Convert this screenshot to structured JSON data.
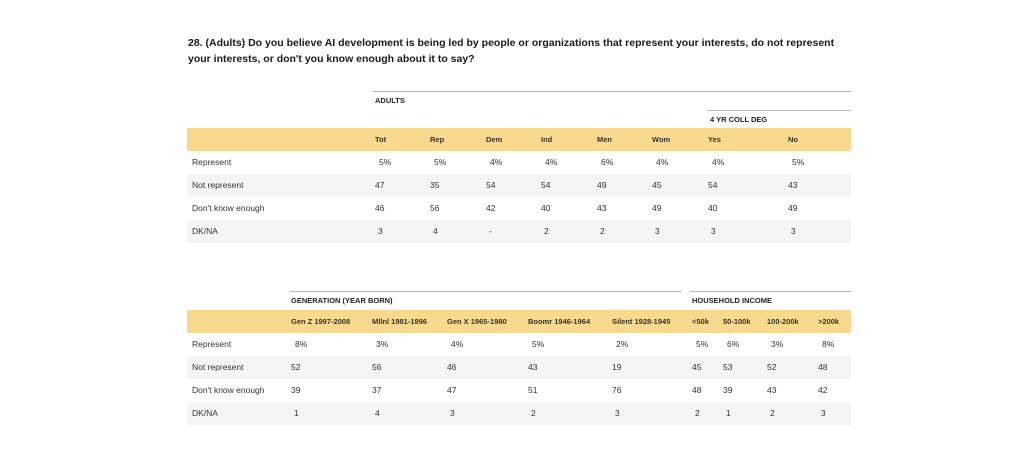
{
  "question": "28. (Adults) Do you believe AI development is being led by people or organizations that represent your interests, do not represent your interests, or don't you know enough about it to say?",
  "table1": {
    "group_adults": "ADULTS",
    "group_college": "4 YR COLL DEG",
    "columns": [
      "Tot",
      "Rep",
      "Dem",
      "Ind",
      "Men",
      "Wom",
      "Yes",
      "No"
    ],
    "rows": [
      {
        "label": "Represent",
        "values": [
          "5%",
          "5%",
          "4%",
          "4%",
          "6%",
          "4%",
          "4%",
          "5%"
        ]
      },
      {
        "label": "Not represent",
        "values": [
          "47",
          "35",
          "54",
          "54",
          "49",
          "45",
          "54",
          "43"
        ]
      },
      {
        "label": "Don't know enough",
        "values": [
          "46",
          "56",
          "42",
          "40",
          "43",
          "49",
          "40",
          "49"
        ]
      },
      {
        "label": "DK/NA",
        "values": [
          "3",
          "4",
          "-",
          "2",
          "2",
          "3",
          "3",
          "3"
        ]
      }
    ]
  },
  "table2": {
    "group_generation": "GENERATION (YEAR BORN)",
    "group_income": "HOUSEHOLD INCOME",
    "columns": [
      "Gen Z 1997-2008",
      "Mllnl 1981-1996",
      "Gen X 1965-1980",
      "Boomr 1946-1964",
      "Silent 1928-1945",
      "<50k",
      "50-100k",
      "100-200k",
      ">200k"
    ],
    "rows": [
      {
        "label": "Represent",
        "values": [
          "8%",
          "3%",
          "4%",
          "5%",
          "2%",
          "5%",
          "6%",
          "3%",
          "8%"
        ]
      },
      {
        "label": "Not represent",
        "values": [
          "52",
          "56",
          "46",
          "43",
          "19",
          "45",
          "53",
          "52",
          "48"
        ]
      },
      {
        "label": "Don't know enough",
        "values": [
          "39",
          "37",
          "47",
          "51",
          "76",
          "48",
          "39",
          "43",
          "42"
        ]
      },
      {
        "label": "DK/NA",
        "values": [
          "1",
          "4",
          "3",
          "2",
          "3",
          "2",
          "1",
          "2",
          "3"
        ]
      }
    ]
  },
  "colors": {
    "header_band": "#f9d98d",
    "alt_row": "#f5f5f5"
  }
}
